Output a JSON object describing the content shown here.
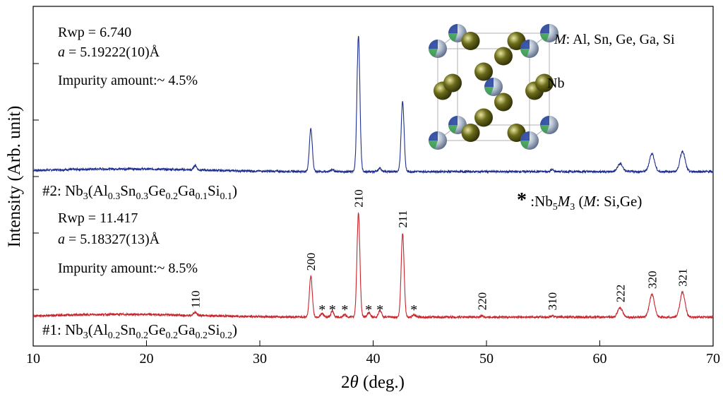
{
  "chart_data": {
    "type": "line",
    "xlabel_prefix": "2",
    "xlabel_theta": "θ",
    "xlabel_suffix": "(deg.)",
    "ylabel": "Intensity (Arb. unit)",
    "xlim": [
      10,
      70
    ],
    "x_ticks": [
      "10",
      "20",
      "30",
      "40",
      "50",
      "60",
      "70"
    ],
    "grid": false,
    "series": [
      {
        "label_prefix": "#2: Nb",
        "label_parts": [
          [
            "3",
            "sub"
          ],
          [
            "(Al",
            ""
          ],
          [
            "0.3",
            "sub"
          ],
          [
            "Sn",
            ""
          ],
          [
            "0.3",
            "sub"
          ],
          [
            "Ge",
            ""
          ],
          [
            "0.2",
            "sub"
          ],
          [
            "Ga",
            ""
          ],
          [
            "0.1",
            "sub"
          ],
          [
            "Si",
            ""
          ],
          [
            "0.1",
            "sub"
          ],
          [
            ")",
            ""
          ]
        ],
        "color": "#1f2f8f",
        "rwp": "Rwp =  6.740",
        "a_symbol": "a",
        "a_value": " = 5.19222(10)Å",
        "impurity": "Impurity amount:~ 4.5%",
        "baseline": 0,
        "peaks": [
          {
            "x": 24.3,
            "h": 2
          },
          {
            "x": 34.5,
            "h": 19
          },
          {
            "x": 36.4,
            "h": 1
          },
          {
            "x": 38.7,
            "h": 60
          },
          {
            "x": 40.6,
            "h": 1.5
          },
          {
            "x": 42.6,
            "h": 31
          },
          {
            "x": 55.8,
            "h": 0.8
          },
          {
            "x": 61.8,
            "h": 3.5
          },
          {
            "x": 64.6,
            "h": 8
          },
          {
            "x": 67.3,
            "h": 9
          }
        ]
      },
      {
        "label_prefix": "#1: Nb",
        "label_parts": [
          [
            "3",
            "sub"
          ],
          [
            "(Al",
            ""
          ],
          [
            "0.2",
            "sub"
          ],
          [
            "Sn",
            ""
          ],
          [
            "0.2",
            "sub"
          ],
          [
            "Ge",
            ""
          ],
          [
            "0.2",
            "sub"
          ],
          [
            "Ga",
            ""
          ],
          [
            "0.2",
            "sub"
          ],
          [
            "Si",
            ""
          ],
          [
            "0.2",
            "sub"
          ],
          [
            ")",
            ""
          ]
        ],
        "color": "#c8242b",
        "rwp": "Rwp =  11.417",
        "a_symbol": "a",
        "a_value": " = 5.18327(13)Å",
        "impurity": "Impurity amount:~ 8.5%",
        "baseline": 0,
        "peaks": [
          {
            "x": 24.3,
            "h": 1.5
          },
          {
            "x": 34.5,
            "h": 18
          },
          {
            "x": 35.5,
            "h": 1.5
          },
          {
            "x": 36.4,
            "h": 2.5
          },
          {
            "x": 37.5,
            "h": 1
          },
          {
            "x": 38.7,
            "h": 46
          },
          {
            "x": 39.6,
            "h": 2
          },
          {
            "x": 40.6,
            "h": 3
          },
          {
            "x": 42.6,
            "h": 37
          },
          {
            "x": 43.6,
            "h": 1
          },
          {
            "x": 49.6,
            "h": 0.5
          },
          {
            "x": 55.8,
            "h": 0.5
          },
          {
            "x": 61.8,
            "h": 4
          },
          {
            "x": 64.6,
            "h": 10
          },
          {
            "x": 67.3,
            "h": 11
          }
        ],
        "peak_labels": [
          {
            "x": 24.3,
            "text": "110"
          },
          {
            "x": 34.5,
            "text": "200"
          },
          {
            "x": 38.7,
            "text": "210"
          },
          {
            "x": 42.6,
            "text": "211"
          },
          {
            "x": 49.6,
            "text": "220"
          },
          {
            "x": 55.8,
            "text": "310"
          },
          {
            "x": 61.8,
            "text": "222"
          },
          {
            "x": 64.6,
            "text": "320"
          },
          {
            "x": 67.3,
            "text": "321"
          }
        ],
        "impurity_marks": [
          35.5,
          36.4,
          37.5,
          39.6,
          40.6,
          43.6
        ]
      }
    ],
    "impurity_legend": {
      "star": "*",
      "prefix": " :Nb",
      "sub1": "5",
      "m_italic": "M",
      "sub2": "3",
      "paren": "  (",
      "m_italic2": "M",
      "rest": ": Si,Ge)"
    },
    "structure_inset": {
      "m_italic": "M",
      "m_label": ": Al, Sn, Ge, Ga, Si",
      "nb_label": "Nb",
      "nb_color": "#6b6b1a",
      "m_colors": [
        "#1e3c9a",
        "#2f9e44",
        "#b8c4d4"
      ]
    }
  }
}
